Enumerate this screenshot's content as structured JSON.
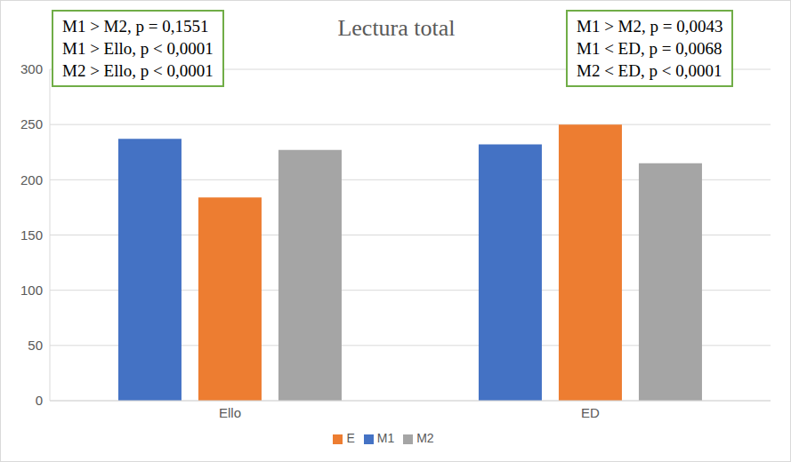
{
  "chart_data": {
    "type": "bar",
    "title": "Lectura total",
    "categories": [
      "Ello",
      "ED"
    ],
    "series": [
      {
        "name": "M1",
        "color": "#4472c4",
        "values": [
          237,
          232
        ]
      },
      {
        "name": "E",
        "color": "#ed7d31",
        "values": [
          184,
          250
        ]
      },
      {
        "name": "M2",
        "color": "#a5a5a5",
        "values": [
          227,
          215
        ]
      }
    ],
    "ylim": [
      0,
      300
    ],
    "yticks": [
      0,
      50,
      100,
      150,
      200,
      250,
      300
    ],
    "grid": true,
    "legend": "bottom",
    "annotations": [
      [
        "M1 > M2, p = 0,1551",
        "M1 > Ello, p < 0,0001",
        "M2 > Ello, p < 0,0001"
      ],
      [
        "M1 > M2, p = 0,0043",
        "M1 < ED, p = 0,0068",
        "M2 < ED, p < 0,0001"
      ]
    ]
  }
}
